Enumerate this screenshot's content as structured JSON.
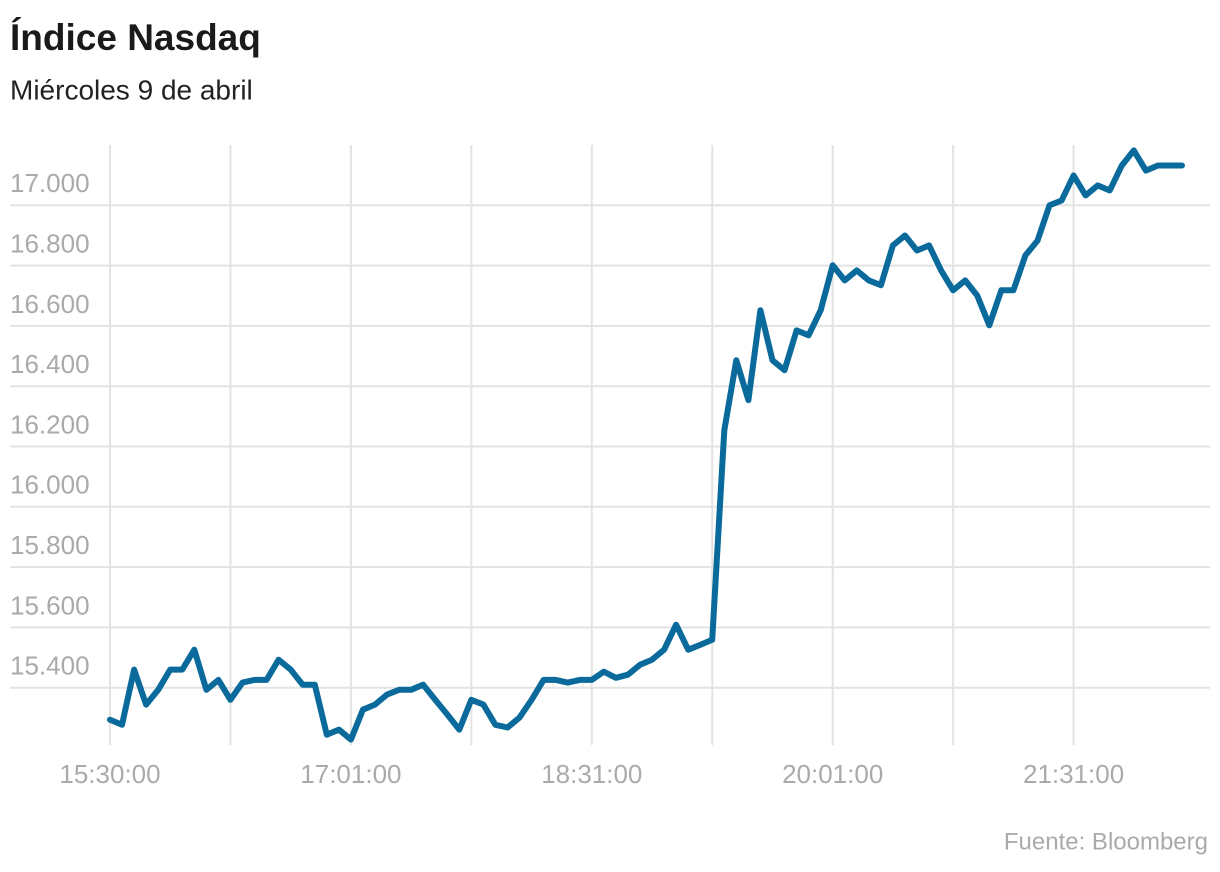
{
  "chart_data": {
    "type": "line",
    "title": "Índice Nasdaq",
    "subtitle": "Miércoles 9 de abril",
    "source": "Fuente: Bloomberg",
    "categories": [
      "15:30:00",
      null,
      null,
      null,
      null,
      null,
      null,
      null,
      null,
      null,
      null,
      null,
      null,
      null,
      null,
      null,
      null,
      null,
      null,
      null,
      "17:01:00",
      null,
      null,
      null,
      null,
      null,
      null,
      null,
      null,
      null,
      null,
      null,
      null,
      null,
      null,
      null,
      null,
      null,
      null,
      null,
      "18:31:00",
      null,
      null,
      null,
      null,
      null,
      null,
      null,
      null,
      null,
      null,
      null,
      null,
      null,
      null,
      null,
      null,
      null,
      null,
      null,
      "20:01:00",
      null,
      null,
      null,
      null,
      null,
      null,
      null,
      null,
      null,
      null,
      null,
      null,
      null,
      null,
      null,
      null,
      null,
      null,
      null,
      "21:31:00",
      null,
      null,
      null,
      null,
      null,
      null,
      null,
      null,
      null
    ],
    "series": [
      {
        "name": "Nasdaq",
        "color": "#0a6a9b",
        "values": [
          15294,
          15277,
          15460,
          15344,
          15393,
          15460,
          15460,
          15526,
          15393,
          15426,
          15360,
          15417,
          15426,
          15426,
          15493,
          15460,
          15410,
          15410,
          15244,
          15261,
          15228,
          15327,
          15344,
          15377,
          15393,
          15393,
          15410,
          15360,
          15311,
          15261,
          15360,
          15344,
          15277,
          15268,
          15301,
          15360,
          15426,
          15426,
          15417,
          15426,
          15426,
          15453,
          15433,
          15443,
          15476,
          15493,
          15526,
          15609,
          15526,
          15542,
          15559,
          16254,
          16486,
          16354,
          16652,
          16486,
          16453,
          16585,
          16569,
          16652,
          16801,
          16751,
          16784,
          16751,
          16735,
          16867,
          16900,
          16850,
          16867,
          16784,
          16718,
          16751,
          16701,
          16602,
          16718,
          16718,
          16834,
          16883,
          17000,
          17016,
          17099,
          17033,
          17066,
          17049,
          17132,
          17182,
          17115,
          17132,
          17132,
          17132
        ]
      }
    ],
    "ylim": [
      15210,
      17200
    ],
    "yticks": [
      {
        "value": 15400,
        "label": "15.400"
      },
      {
        "value": 15600,
        "label": "15.600"
      },
      {
        "value": 15800,
        "label": "15.800"
      },
      {
        "value": 16000,
        "label": "16.000"
      },
      {
        "value": 16200,
        "label": "16.200"
      },
      {
        "value": 16400,
        "label": "16.400"
      },
      {
        "value": 16600,
        "label": "16.600"
      },
      {
        "value": 16800,
        "label": "16.800"
      },
      {
        "value": 17000,
        "label": "17.000"
      }
    ],
    "grid": true
  }
}
